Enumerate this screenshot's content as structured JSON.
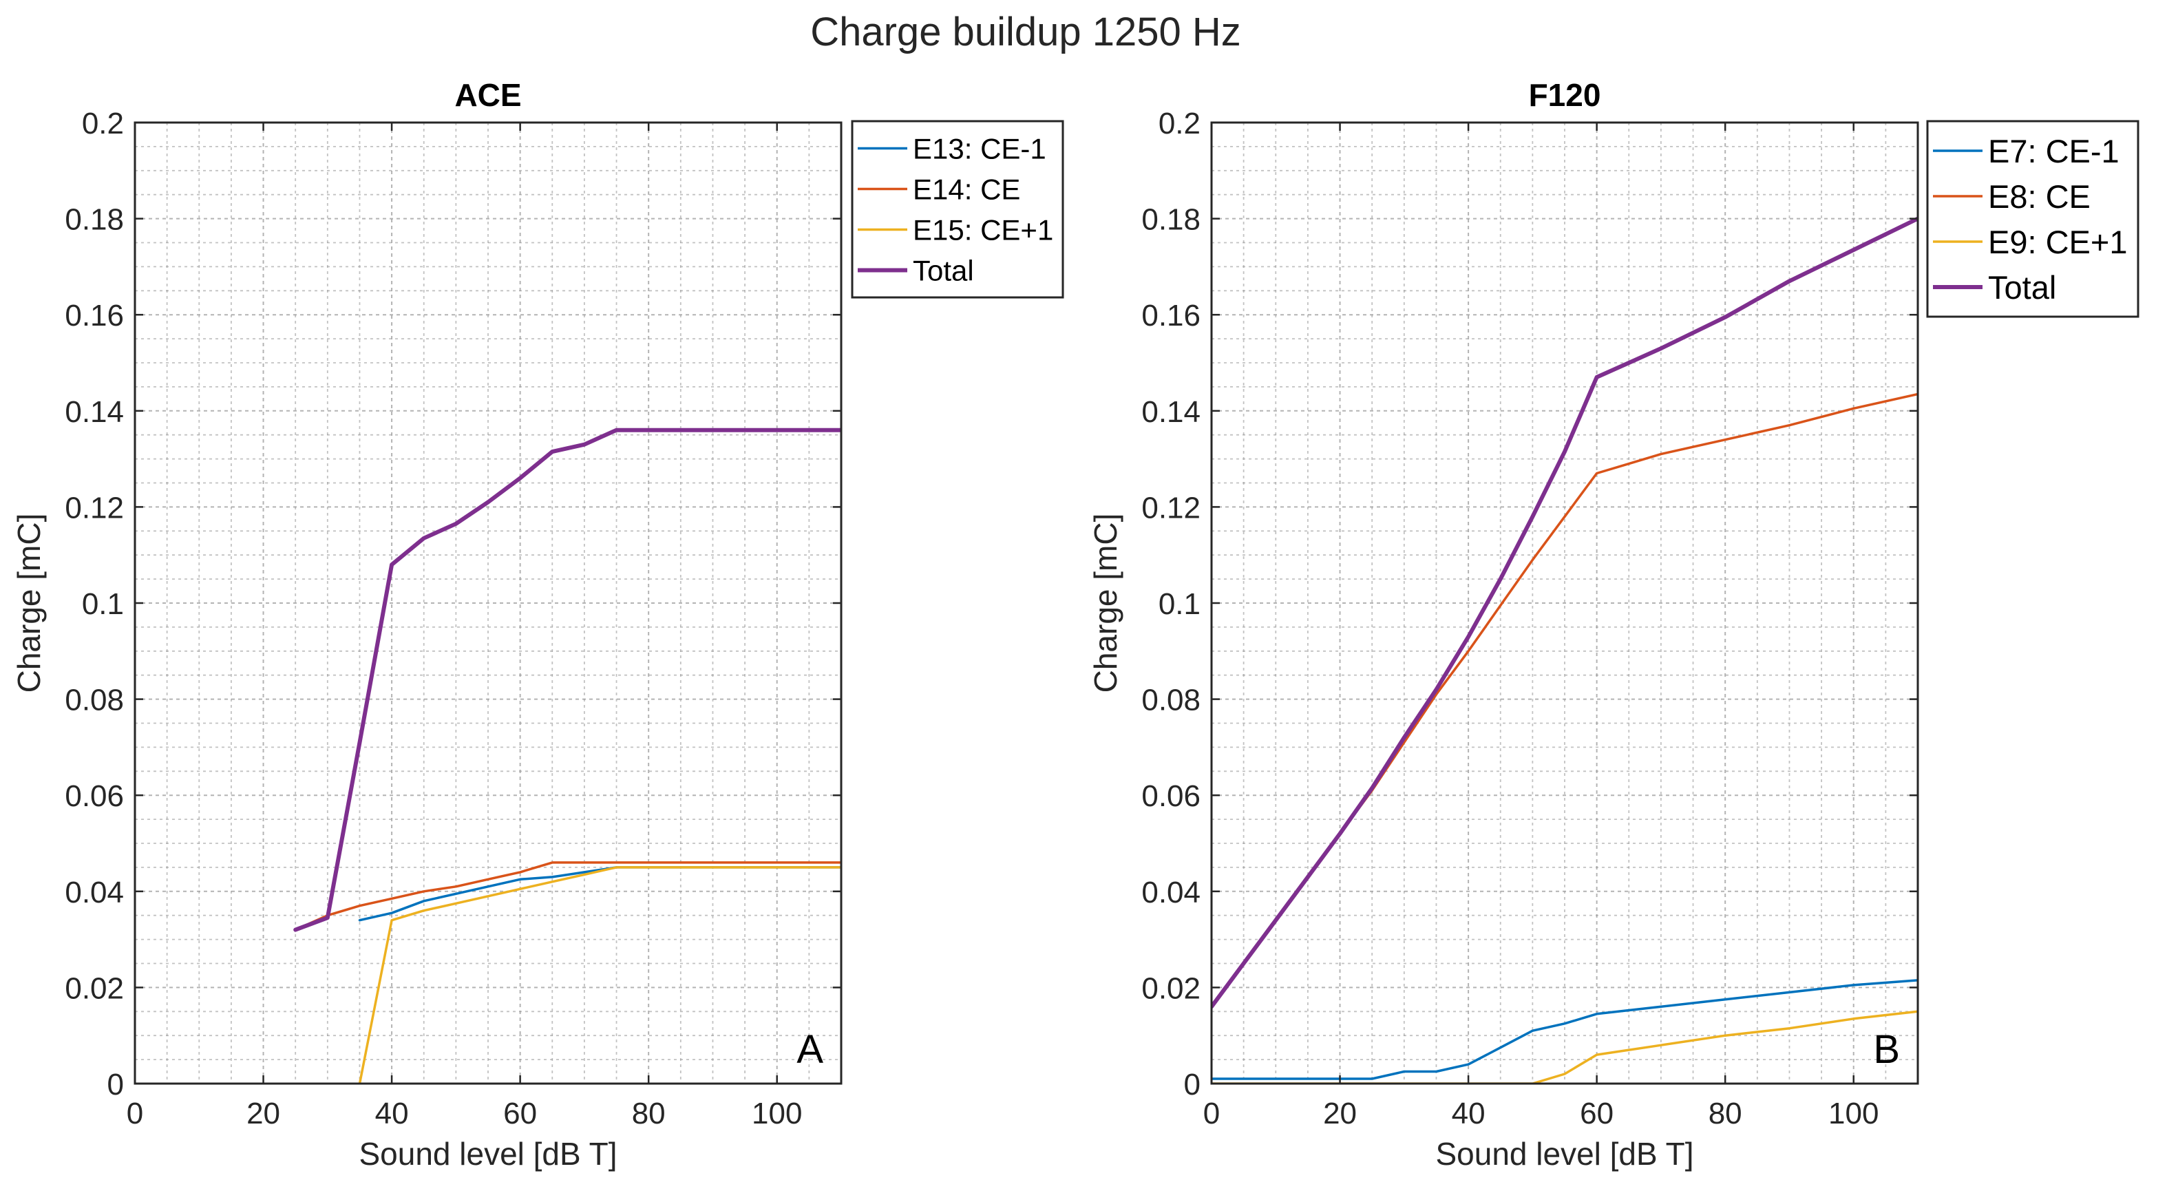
{
  "figure": {
    "title": "Charge buildup 1250 Hz"
  },
  "colors": {
    "series1": "#0072BD",
    "series2": "#D95319",
    "series3": "#EDB120",
    "total": "#7E2F8E",
    "axis": "#262626",
    "grid": "#9a9a9a"
  },
  "chart_data": [
    {
      "type": "line",
      "title": "ACE",
      "panel_label": "A",
      "xlabel": "Sound level [dB T]",
      "ylabel": "Charge [mC]",
      "xlim": [
        0,
        110
      ],
      "ylim": [
        0,
        0.2
      ],
      "xticks": [
        0,
        20,
        40,
        60,
        80,
        100
      ],
      "xtick_labels": [
        "0",
        "20",
        "40",
        "60",
        "80",
        "100"
      ],
      "yticks": [
        0,
        0.02,
        0.04,
        0.06,
        0.08,
        0.1,
        0.12,
        0.14,
        0.16,
        0.18,
        0.2
      ],
      "ytick_labels": [
        "0",
        "0.02",
        "0.04",
        "0.06",
        "0.08",
        "0.1",
        "0.12",
        "0.14",
        "0.16",
        "0.18",
        "0.2"
      ],
      "grid": true,
      "legend_position": "outside-top-right",
      "series": [
        {
          "name": "E13: CE-1",
          "color_key": "series1",
          "x": [
            35,
            40,
            45,
            50,
            55,
            60,
            65,
            70,
            75,
            80,
            90,
            100,
            110
          ],
          "y": [
            0.034,
            0.0355,
            0.038,
            0.0395,
            0.041,
            0.0425,
            0.043,
            0.044,
            0.045,
            0.045,
            0.045,
            0.045,
            0.045
          ]
        },
        {
          "name": "E14: CE",
          "color_key": "series2",
          "x": [
            25,
            30,
            35,
            40,
            45,
            50,
            55,
            60,
            65,
            70,
            75,
            80,
            90,
            100,
            110
          ],
          "y": [
            0.032,
            0.035,
            0.037,
            0.0385,
            0.04,
            0.041,
            0.0425,
            0.044,
            0.046,
            0.046,
            0.046,
            0.046,
            0.046,
            0.046,
            0.046
          ]
        },
        {
          "name": "E15: CE+1",
          "color_key": "series3",
          "x": [
            35,
            40,
            45,
            50,
            55,
            60,
            65,
            70,
            75,
            80,
            90,
            100,
            110
          ],
          "y": [
            0,
            0.034,
            0.036,
            0.0375,
            0.039,
            0.0405,
            0.042,
            0.0435,
            0.045,
            0.045,
            0.045,
            0.045,
            0.045
          ]
        },
        {
          "name": "Total",
          "color_key": "total",
          "total": true,
          "x": [
            25,
            30,
            35,
            40,
            45,
            50,
            55,
            60,
            65,
            70,
            75,
            80,
            90,
            100,
            110
          ],
          "y": [
            0.032,
            0.0345,
            0.071,
            0.108,
            0.1135,
            0.1165,
            0.121,
            0.126,
            0.1315,
            0.133,
            0.136,
            0.136,
            0.136,
            0.136,
            0.136
          ]
        }
      ]
    },
    {
      "type": "line",
      "title": "F120",
      "panel_label": "B",
      "xlabel": "Sound level [dB T]",
      "ylabel": "Charge [mC]",
      "xlim": [
        0,
        110
      ],
      "ylim": [
        0,
        0.2
      ],
      "xticks": [
        0,
        20,
        40,
        60,
        80,
        100
      ],
      "xtick_labels": [
        "0",
        "20",
        "40",
        "60",
        "80",
        "100"
      ],
      "yticks": [
        0,
        0.02,
        0.04,
        0.06,
        0.08,
        0.1,
        0.12,
        0.14,
        0.16,
        0.18,
        0.2
      ],
      "ytick_labels": [
        "0",
        "0.02",
        "0.04",
        "0.06",
        "0.08",
        "0.1",
        "0.12",
        "0.14",
        "0.16",
        "0.18",
        "0.2"
      ],
      "grid": true,
      "legend_position": "outside-top-right",
      "series": [
        {
          "name": "E7: CE-1",
          "color_key": "series1",
          "x": [
            0,
            5,
            10,
            15,
            20,
            25,
            30,
            35,
            40,
            45,
            50,
            55,
            60,
            70,
            80,
            90,
            100,
            110
          ],
          "y": [
            0.001,
            0.001,
            0.001,
            0.001,
            0.001,
            0.001,
            0.0025,
            0.0025,
            0.004,
            0.0075,
            0.011,
            0.0125,
            0.0145,
            0.016,
            0.0175,
            0.019,
            0.0205,
            0.0215
          ]
        },
        {
          "name": "E8: CE",
          "color_key": "series2",
          "x": [
            0,
            5,
            10,
            15,
            20,
            25,
            30,
            35,
            40,
            45,
            50,
            55,
            60,
            65,
            70,
            80,
            90,
            100,
            110
          ],
          "y": [
            0.016,
            0.025,
            0.034,
            0.043,
            0.052,
            0.061,
            0.071,
            0.081,
            0.09,
            0.0995,
            0.109,
            0.118,
            0.127,
            0.129,
            0.131,
            0.134,
            0.137,
            0.1405,
            0.1435
          ]
        },
        {
          "name": "E9: CE+1",
          "color_key": "series3",
          "x": [
            0,
            10,
            20,
            30,
            40,
            50,
            55,
            60,
            70,
            80,
            90,
            100,
            110
          ],
          "y": [
            0,
            0,
            0,
            0,
            0,
            0,
            0.002,
            0.006,
            0.008,
            0.01,
            0.0115,
            0.0135,
            0.015
          ]
        },
        {
          "name": "Total",
          "color_key": "total",
          "total": true,
          "x": [
            0,
            5,
            10,
            15,
            20,
            25,
            30,
            35,
            40,
            45,
            50,
            55,
            60,
            65,
            70,
            80,
            90,
            100,
            110
          ],
          "y": [
            0.016,
            0.025,
            0.034,
            0.043,
            0.052,
            0.0615,
            0.072,
            0.082,
            0.093,
            0.105,
            0.118,
            0.1315,
            0.147,
            0.15,
            0.153,
            0.1595,
            0.167,
            0.1735,
            0.18
          ]
        }
      ]
    }
  ]
}
